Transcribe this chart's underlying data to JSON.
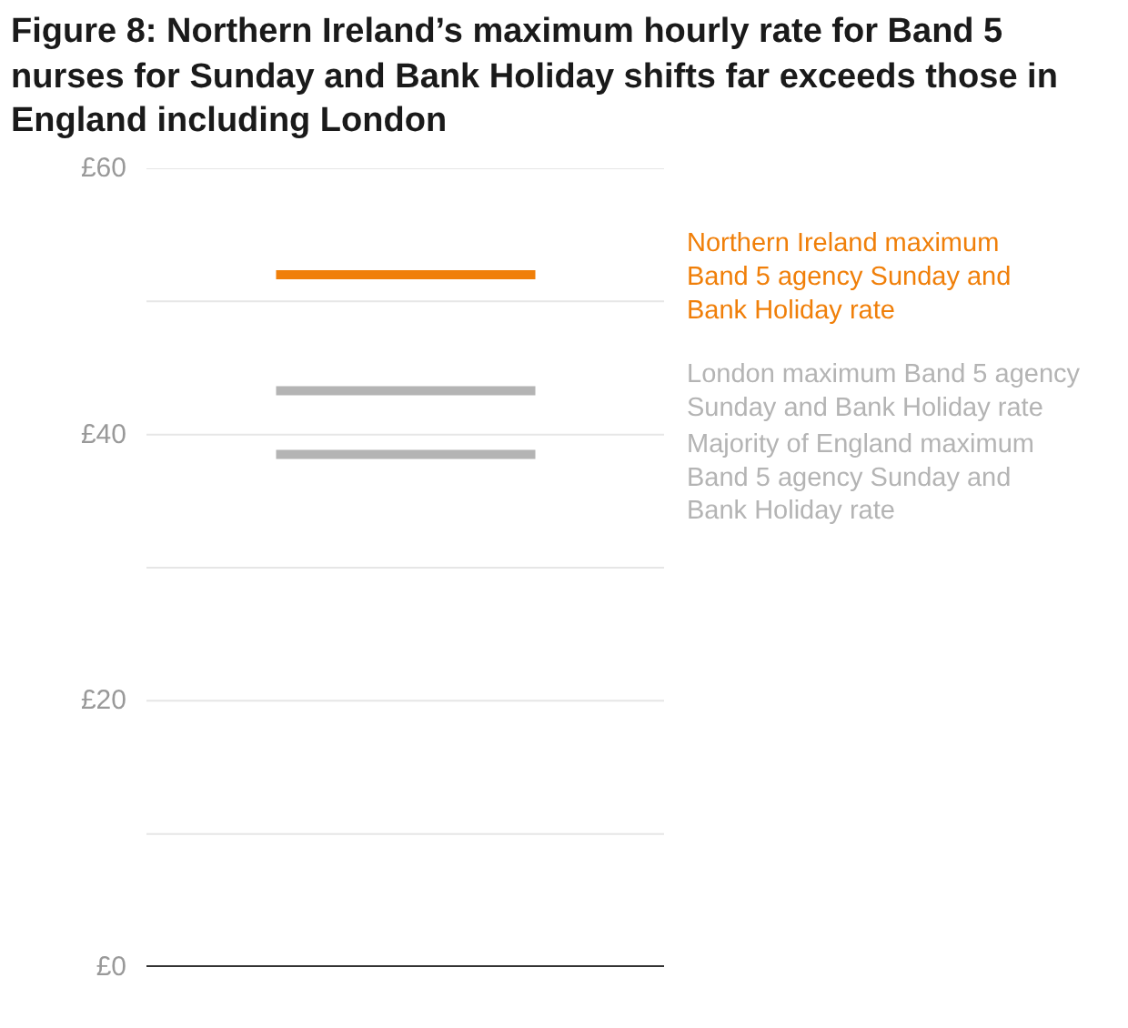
{
  "chart_data": {
    "type": "line",
    "title": "Figure 8: Northern Ireland’s maximum hourly rate for Band 5 nurses for Sunday and Bank Holiday shifts far exceeds those in England including London",
    "categories": [
      null,
      null
    ],
    "series": [
      {
        "name": "Northern Ireland maximum Band 5 agency Sunday and Bank Holiday rate",
        "color": "#f07f09",
        "values": [
          52.0,
          52.0
        ]
      },
      {
        "name": "London maximum Band 5 agency Sunday and Bank Holiday rate",
        "color": "#b4b4b4",
        "values": [
          43.3,
          43.3
        ]
      },
      {
        "name": "Majority of England maximum Band 5 agency Sunday and Bank Holiday rate",
        "color": "#b4b4b4",
        "values": [
          38.5,
          38.5
        ]
      }
    ],
    "ylim": [
      0,
      60
    ],
    "yticks": [
      {
        "value": 0,
        "label": "£0"
      },
      {
        "value": 10,
        "label": null
      },
      {
        "value": 20,
        "label": "£20"
      },
      {
        "value": 30,
        "label": null
      },
      {
        "value": 40,
        "label": "£40"
      },
      {
        "value": 50,
        "label": null
      },
      {
        "value": 60,
        "label": "£60"
      }
    ],
    "grid": "y",
    "tick_labels": "y",
    "legend": false,
    "marker": "none",
    "line_style": "solid"
  }
}
